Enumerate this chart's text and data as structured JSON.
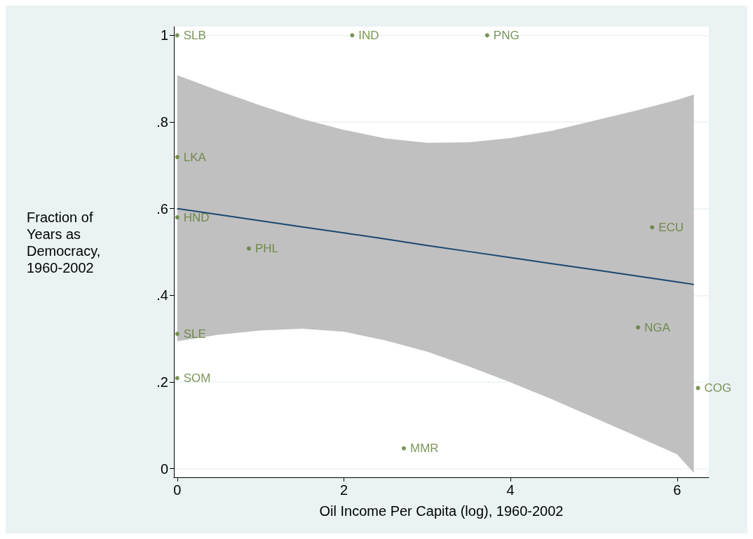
{
  "chart_data": {
    "type": "scatter",
    "xlabel": "Oil Income Per Capita (log), 1960-2002",
    "ylabel": "Fraction of Years as Democracy, 1960-2002",
    "xlim": [
      -0.04,
      6.38
    ],
    "xticks": [
      0,
      2,
      4,
      6
    ],
    "ylim": [
      -0.02,
      1.02
    ],
    "yticks": [
      0,
      {
        "value": 0.2,
        "label": ".2"
      },
      {
        "value": 0.4,
        "label": ".4"
      },
      {
        "value": 0.6,
        "label": ".6"
      },
      {
        "value": 0.8,
        "label": ".8"
      },
      1
    ],
    "grid": "y",
    "series": [
      {
        "color": "#5b7a2e",
        "marker": "circle",
        "x": [
          0,
          2.1,
          3.72,
          0,
          0,
          0.86,
          0,
          0,
          2.72,
          5.53,
          5.7,
          6.25
        ],
        "values": [
          1,
          1,
          1,
          0.719,
          0.58,
          0.508,
          0.311,
          0.209,
          0.047,
          0.326,
          0.557,
          0.186
        ],
        "value_labels": [
          "SLB",
          "IND",
          "PNG",
          "LKA",
          "HND",
          "PHL",
          "SLE",
          "SOM",
          "MMR",
          "NGA",
          "ECU",
          "COG"
        ]
      },
      {
        "type": "line",
        "color": "#1a476f",
        "x": [
          0,
          0.5,
          1,
          1.5,
          2,
          2.5,
          3,
          3.5,
          4,
          4.5,
          5,
          5.5,
          6,
          6.2
        ],
        "values": [
          0.6,
          0.586,
          0.572,
          0.558,
          0.544,
          0.53,
          0.515,
          0.501,
          0.487,
          0.473,
          0.459,
          0.445,
          0.431,
          0.425
        ],
        "lower": [
          0.294,
          0.309,
          0.319,
          0.323,
          0.316,
          0.296,
          0.27,
          0.236,
          0.199,
          0.16,
          0.118,
          0.076,
          0.033,
          -0.01
        ],
        "upper": [
          0.908,
          0.872,
          0.838,
          0.807,
          0.782,
          0.762,
          0.752,
          0.753,
          0.763,
          0.78,
          0.803,
          0.826,
          0.851,
          0.863
        ]
      }
    ]
  }
}
